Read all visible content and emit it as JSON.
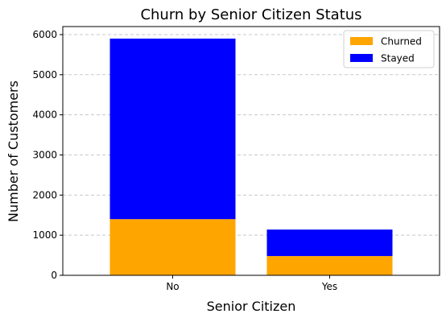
{
  "chart_data": {
    "type": "bar",
    "stacked": true,
    "title": "Churn by Senior Citizen Status",
    "xlabel": "Senior Citizen",
    "ylabel": "Number of Customers",
    "categories": [
      "No",
      "Yes"
    ],
    "series": [
      {
        "name": "Churned",
        "values": [
          1400,
          480
        ],
        "color": "#FFA500"
      },
      {
        "name": "Stayed",
        "values": [
          4500,
          660
        ],
        "color": "#0000FF"
      }
    ],
    "ylim": [
      0,
      6200
    ],
    "yticks": [
      0,
      1000,
      2000,
      3000,
      4000,
      5000,
      6000
    ],
    "grid": {
      "axis": "y",
      "style": "dashed"
    },
    "legend_position": "top-right"
  }
}
